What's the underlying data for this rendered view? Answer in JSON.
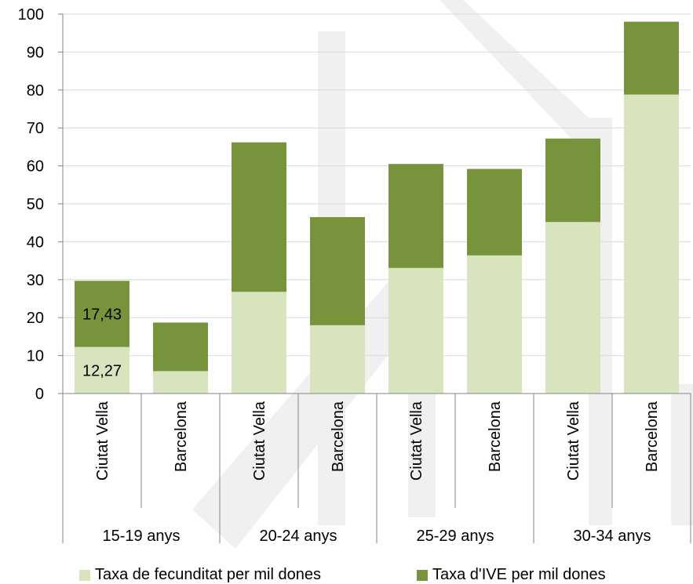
{
  "chart_data": {
    "type": "bar",
    "stacked": true,
    "title": "",
    "xlabel": "",
    "ylabel": "",
    "ylim": [
      0,
      100
    ],
    "yticks": [
      0,
      10,
      20,
      30,
      40,
      50,
      60,
      70,
      80,
      90,
      100
    ],
    "grid": true,
    "legend_position": "bottom",
    "categories": [
      "Ciutat Vella",
      "Barcelona",
      "Ciutat Vella",
      "Barcelona",
      "Ciutat Vella",
      "Barcelona",
      "Ciutat Vella",
      "Barcelona"
    ],
    "groups": [
      "15-19 anys",
      "20-24 anys",
      "25-29 anys",
      "30-34 anys"
    ],
    "series": [
      {
        "name": "Taxa de fecunditat per mil dones",
        "color": "#d7e4bd",
        "values": [
          12.27,
          5.9,
          26.8,
          18.0,
          33.1,
          36.4,
          45.2,
          78.8
        ]
      },
      {
        "name": "Taxa d'IVE per mil dones",
        "color": "#77933c",
        "values": [
          17.43,
          12.8,
          39.4,
          28.5,
          27.4,
          22.8,
          22.0,
          19.2
        ]
      }
    ],
    "data_labels": [
      {
        "series": 0,
        "index": 0,
        "text": "12,27"
      },
      {
        "series": 1,
        "index": 0,
        "text": "17,43"
      }
    ]
  },
  "colors": {
    "grid": "#d9d9d9",
    "axis": "#868686",
    "watermark": "#f0f0f0"
  }
}
